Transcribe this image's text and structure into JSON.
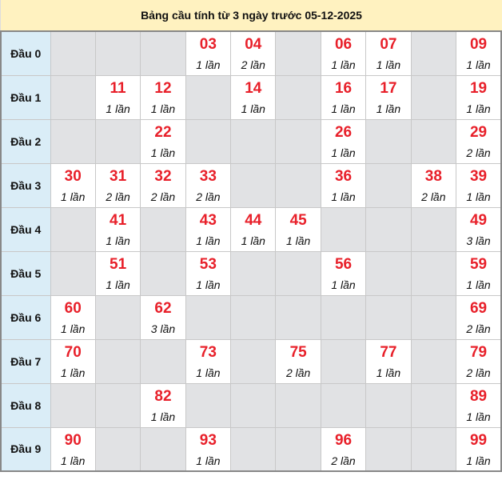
{
  "title": "Bảng cầu tính từ 3 ngày trước 05-12-2025",
  "colors": {
    "number": "#e8202a",
    "header_bg": "#fff2c0",
    "row_head_bg": "#daedf7",
    "empty_bg": "#e1e2e4"
  },
  "rows": [
    {
      "label": "Đầu 0",
      "cells": [
        null,
        null,
        null,
        {
          "n": "03",
          "c": "1 lần"
        },
        {
          "n": "04",
          "c": "2 lần"
        },
        null,
        {
          "n": "06",
          "c": "1 lần"
        },
        {
          "n": "07",
          "c": "1 lần"
        },
        null,
        {
          "n": "09",
          "c": "1 lần"
        }
      ]
    },
    {
      "label": "Đầu 1",
      "cells": [
        null,
        {
          "n": "11",
          "c": "1 lần"
        },
        {
          "n": "12",
          "c": "1 lần"
        },
        null,
        {
          "n": "14",
          "c": "1 lần"
        },
        null,
        {
          "n": "16",
          "c": "1 lần"
        },
        {
          "n": "17",
          "c": "1 lần"
        },
        null,
        {
          "n": "19",
          "c": "1 lần"
        }
      ]
    },
    {
      "label": "Đầu 2",
      "cells": [
        null,
        null,
        {
          "n": "22",
          "c": "1 lần"
        },
        null,
        null,
        null,
        {
          "n": "26",
          "c": "1 lần"
        },
        null,
        null,
        {
          "n": "29",
          "c": "2 lần"
        }
      ]
    },
    {
      "label": "Đầu 3",
      "cells": [
        {
          "n": "30",
          "c": "1 lần"
        },
        {
          "n": "31",
          "c": "2 lần"
        },
        {
          "n": "32",
          "c": "2 lần"
        },
        {
          "n": "33",
          "c": "2 lần"
        },
        null,
        null,
        {
          "n": "36",
          "c": "1 lần"
        },
        null,
        {
          "n": "38",
          "c": "2 lần"
        },
        {
          "n": "39",
          "c": "1 lần"
        }
      ]
    },
    {
      "label": "Đầu 4",
      "cells": [
        null,
        {
          "n": "41",
          "c": "1 lần"
        },
        null,
        {
          "n": "43",
          "c": "1 lần"
        },
        {
          "n": "44",
          "c": "1 lần"
        },
        {
          "n": "45",
          "c": "1 lần"
        },
        null,
        null,
        null,
        {
          "n": "49",
          "c": "3 lần"
        }
      ]
    },
    {
      "label": "Đầu 5",
      "cells": [
        null,
        {
          "n": "51",
          "c": "1 lần"
        },
        null,
        {
          "n": "53",
          "c": "1 lần"
        },
        null,
        null,
        {
          "n": "56",
          "c": "1 lần"
        },
        null,
        null,
        {
          "n": "59",
          "c": "1 lần"
        }
      ]
    },
    {
      "label": "Đầu 6",
      "cells": [
        {
          "n": "60",
          "c": "1 lần"
        },
        null,
        {
          "n": "62",
          "c": "3 lần"
        },
        null,
        null,
        null,
        null,
        null,
        null,
        {
          "n": "69",
          "c": "2 lần"
        }
      ]
    },
    {
      "label": "Đầu 7",
      "cells": [
        {
          "n": "70",
          "c": "1 lần"
        },
        null,
        null,
        {
          "n": "73",
          "c": "1 lần"
        },
        null,
        {
          "n": "75",
          "c": "2 lần"
        },
        null,
        {
          "n": "77",
          "c": "1 lần"
        },
        null,
        {
          "n": "79",
          "c": "2 lần"
        }
      ]
    },
    {
      "label": "Đầu 8",
      "cells": [
        null,
        null,
        {
          "n": "82",
          "c": "1 lần"
        },
        null,
        null,
        null,
        null,
        null,
        null,
        {
          "n": "89",
          "c": "1 lần"
        }
      ]
    },
    {
      "label": "Đầu 9",
      "cells": [
        {
          "n": "90",
          "c": "1 lần"
        },
        null,
        null,
        {
          "n": "93",
          "c": "1 lần"
        },
        null,
        null,
        {
          "n": "96",
          "c": "2 lần"
        },
        null,
        null,
        {
          "n": "99",
          "c": "1 lần"
        }
      ]
    }
  ]
}
